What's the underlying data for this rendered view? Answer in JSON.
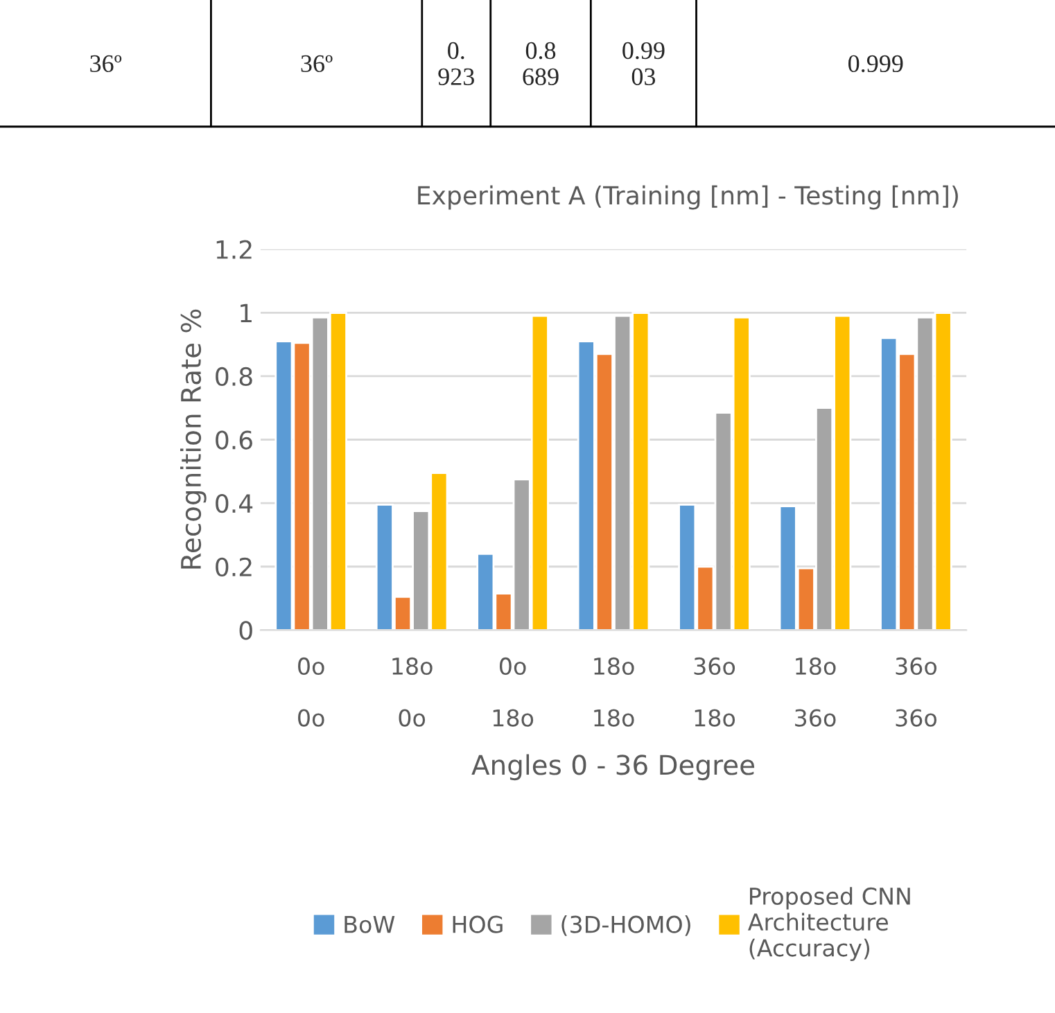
{
  "chart_data": {
    "type": "bar",
    "title": "Experiment A (Training [nm] - Testing [nm])",
    "xlabel": "Angles 0 - 36 Degree",
    "ylabel": "Recognition Rate %",
    "categories": [
      "0o\n\n0o",
      "18o\n\n0o",
      "0o\n\n18o",
      "18o\n\n18o",
      "36o\n\n18o",
      "18o\n\n36o",
      "36o\n\n36o"
    ],
    "series": [
      {
        "name": "BoW",
        "color": "#5b9bd5",
        "values": [
          0.91,
          0.395,
          0.24,
          0.91,
          0.395,
          0.39,
          0.92
        ]
      },
      {
        "name": "HOG",
        "color": "#ed7d31",
        "values": [
          0.905,
          0.105,
          0.115,
          0.87,
          0.2,
          0.195,
          0.87
        ]
      },
      {
        "name": "(3D-HOMO)",
        "color": "#a5a5a5",
        "values": [
          0.985,
          0.375,
          0.475,
          0.99,
          0.685,
          0.7,
          0.985
        ]
      },
      {
        "name": "Proposed CNN\nArchitecture\n(Accuracy)",
        "color": "#ffc000",
        "values": [
          0.999,
          0.495,
          0.99,
          0.999,
          0.985,
          0.99,
          0.999
        ]
      }
    ],
    "ylim": [
      0,
      1.2
    ],
    "yticks": [
      0,
      0.2,
      0.4,
      0.6,
      0.8,
      1,
      1.2
    ],
    "grid": "y",
    "legend": "bottom",
    "annotations": [
      "36º",
      "36º",
      "0.\n923",
      "0.8\n689",
      "0.99\n03",
      "0.999"
    ]
  }
}
